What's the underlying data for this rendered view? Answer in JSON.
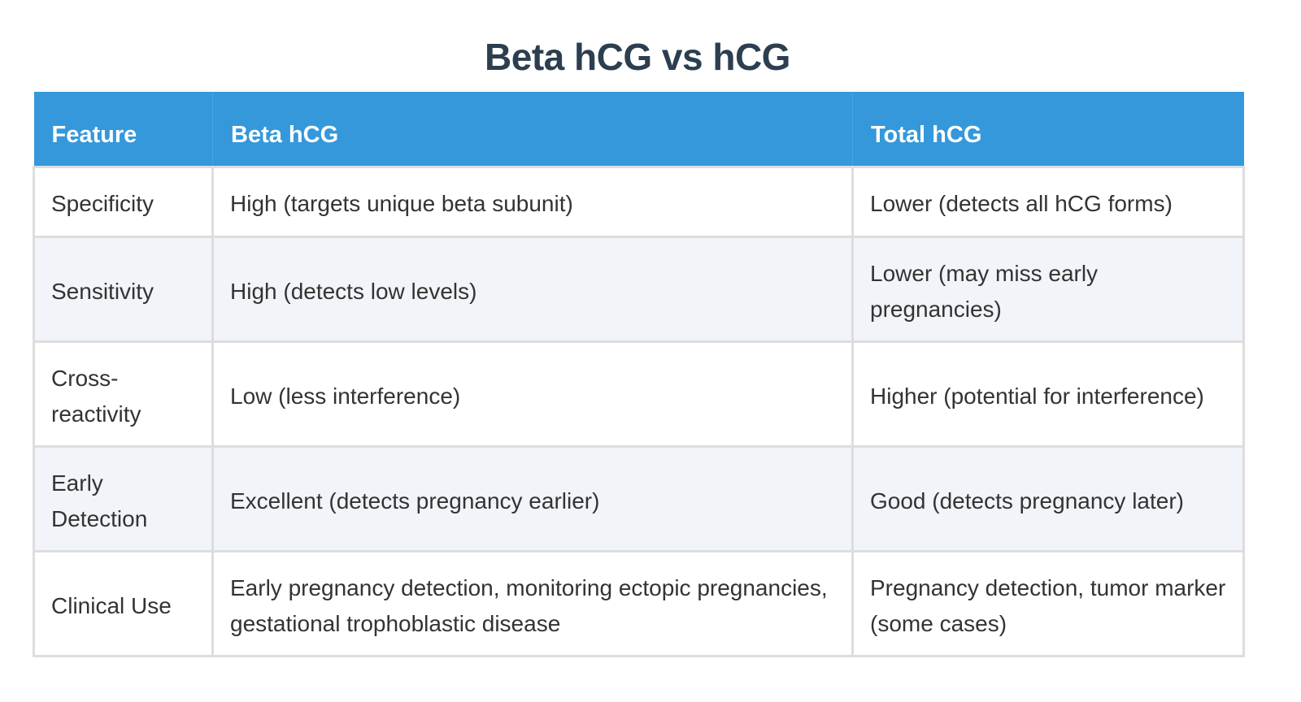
{
  "title": "Beta hCG vs hCG",
  "colors": {
    "title": "#2c3e50",
    "header_bg": "#3498db",
    "header_text": "#ffffff",
    "row_alt_bg": "#f1f4f9",
    "border": "#dddddd",
    "body_text": "#333333"
  },
  "table": {
    "headers": [
      "Feature",
      "Beta hCG",
      "Total hCG"
    ],
    "rows": [
      {
        "feature": "Specificity",
        "beta_hcg": "High (targets unique beta subunit)",
        "total_hcg": "Lower (detects all hCG forms)"
      },
      {
        "feature": "Sensitivity",
        "beta_hcg": "High (detects low levels)",
        "total_hcg": "Lower (may miss early pregnancies)"
      },
      {
        "feature": "Cross-reactivity",
        "beta_hcg": "Low (less interference)",
        "total_hcg": "Higher (potential for interference)"
      },
      {
        "feature": "Early Detection",
        "beta_hcg": "Excellent (detects pregnancy earlier)",
        "total_hcg": "Good (detects pregnancy later)"
      },
      {
        "feature": "Clinical Use",
        "beta_hcg": "Early pregnancy detection, monitoring ectopic pregnancies, gestational trophoblastic disease",
        "total_hcg": "Pregnancy detection, tumor marker (some cases)"
      }
    ]
  }
}
